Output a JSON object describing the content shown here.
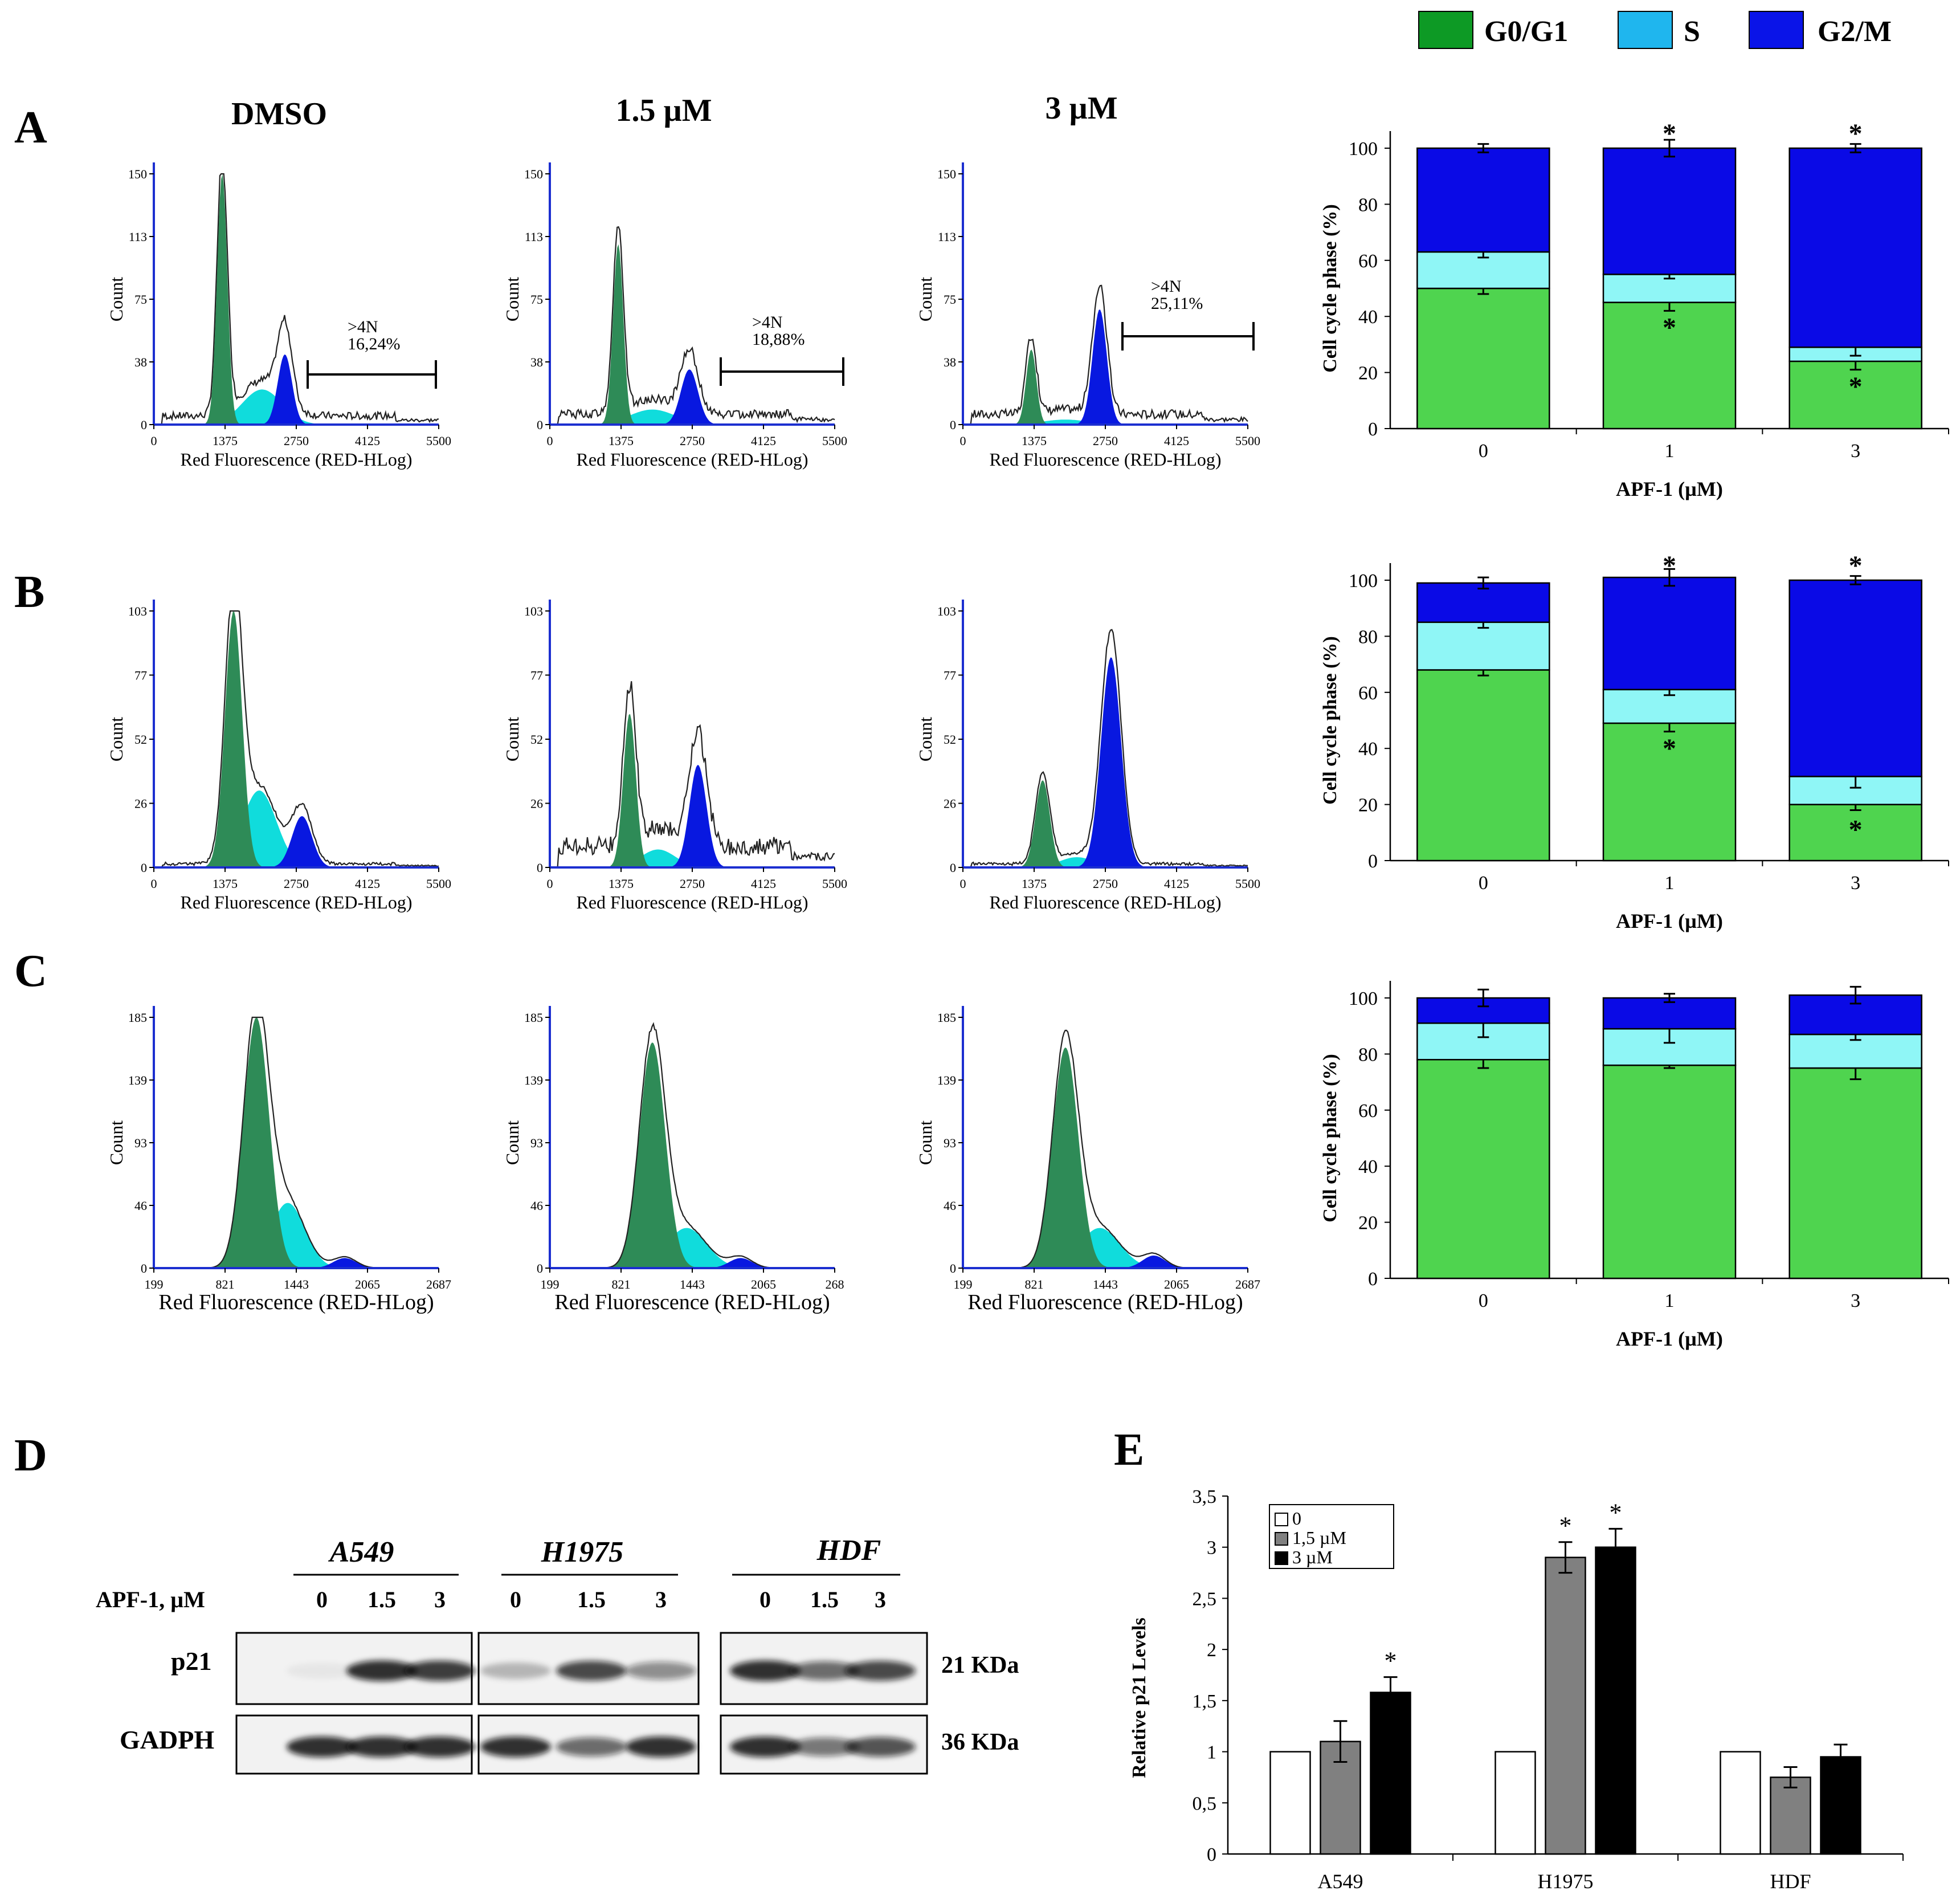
{
  "legend": {
    "items": [
      {
        "label": "G0/G1",
        "color": "#0d9a25"
      },
      {
        "label": "S",
        "color": "#1fb6ee"
      },
      {
        "label": "G2/M",
        "color": "#0a14e8"
      }
    ]
  },
  "panel_labels": {
    "A": "A",
    "B": "B",
    "C": "C",
    "D": "D",
    "E": "E"
  },
  "column_titles": [
    "DMSO",
    "1.5 µM",
    "3 µM"
  ],
  "histogram_axes": {
    "xlabel": "Red Fluorescence (RED-HLog)",
    "ylabel": "Count",
    "x_ticks_ab": [
      "0",
      "1375",
      "2750",
      "4125",
      "5500"
    ],
    "x_ticks_c": [
      "199",
      "821",
      "1443",
      "2065",
      "2687"
    ],
    "x_ticks_c_clipped": [
      "199",
      "821",
      "1443",
      "2065",
      "268"
    ],
    "y_ticks_a": [
      "0",
      "38",
      "75",
      "113",
      "150"
    ],
    "y_ticks_b": [
      "0",
      "26",
      "52",
      "77",
      "103"
    ],
    "y_ticks_c": [
      "0",
      "46",
      "93",
      "139",
      "185"
    ]
  },
  "annotations": {
    "a1": {
      "line1": ">4N",
      "line2": "16,24%"
    },
    "a2": {
      "line1": ">4N",
      "line2": "18,88%"
    },
    "a3": {
      "line1": ">4N",
      "line2": "25,11%"
    }
  },
  "colors": {
    "hist_g1": "#2e8b57",
    "hist_s": "#10dcdc",
    "hist_g2": "#0818e0",
    "bar_g1": "#4fd44f",
    "bar_s": "#8ff6f6",
    "bar_g2": "#0a0ae6",
    "e_0": "#ffffff",
    "e_15": "#808080",
    "e_3": "#000000"
  },
  "chart_data": [
    {
      "panel": "A",
      "type": "bar",
      "stacked": true,
      "title": "",
      "xlabel": "APF-1 (µM)",
      "ylabel": "Cell cycle phase (%)",
      "categories": [
        "0",
        "1",
        "3"
      ],
      "ylim": [
        0,
        100
      ],
      "yticks": [
        "0",
        "20",
        "40",
        "60",
        "80",
        "100"
      ],
      "series": [
        {
          "name": "G0/G1",
          "values": [
            50,
            45,
            24
          ],
          "errors": [
            2,
            3,
            3
          ]
        },
        {
          "name": "S",
          "values": [
            13,
            10,
            5
          ],
          "errors": [
            2,
            1.5,
            3
          ]
        },
        {
          "name": "G2/M",
          "values": [
            37,
            45,
            71
          ],
          "errors": [
            1.5,
            3,
            1.5
          ]
        }
      ],
      "significance": [
        "",
        "*",
        "*"
      ]
    },
    {
      "panel": "B",
      "type": "bar",
      "stacked": true,
      "xlabel": "APF-1 (µM)",
      "ylabel": "Cell cycle phase (%)",
      "categories": [
        "0",
        "1",
        "3"
      ],
      "ylim": [
        0,
        100
      ],
      "yticks": [
        "0",
        "20",
        "40",
        "60",
        "80",
        "100"
      ],
      "series": [
        {
          "name": "G0/G1",
          "values": [
            68,
            49,
            20
          ],
          "errors": [
            2,
            3,
            2
          ]
        },
        {
          "name": "S",
          "values": [
            17,
            12,
            10
          ],
          "errors": [
            2,
            2,
            4
          ]
        },
        {
          "name": "G2/M",
          "values": [
            14,
            40,
            70
          ],
          "errors": [
            2,
            3,
            1.5
          ]
        }
      ],
      "significance": [
        "",
        "*",
        "*"
      ]
    },
    {
      "panel": "C",
      "type": "bar",
      "stacked": true,
      "xlabel": "APF-1 (µM)",
      "ylabel": "Cell cycle phase (%)",
      "categories": [
        "0",
        "1",
        "3"
      ],
      "ylim": [
        0,
        100
      ],
      "yticks": [
        "0",
        "20",
        "40",
        "60",
        "80",
        "100"
      ],
      "series": [
        {
          "name": "G0/G1",
          "values": [
            78,
            76,
            75
          ],
          "errors": [
            3,
            1,
            4
          ]
        },
        {
          "name": "S",
          "values": [
            13,
            13,
            12
          ],
          "errors": [
            5,
            5,
            2
          ]
        },
        {
          "name": "G2/M",
          "values": [
            9,
            11,
            14
          ],
          "errors": [
            3,
            1.5,
            3
          ]
        }
      ],
      "significance": [
        "",
        "",
        ""
      ]
    },
    {
      "panel": "E",
      "type": "bar",
      "xlabel": "",
      "ylabel": "Relative p21 Levels",
      "categories": [
        "A549",
        "H1975",
        "HDF"
      ],
      "ylim": [
        0,
        3.5
      ],
      "yticks": [
        "0",
        "0,5",
        "1",
        "1,5",
        "2",
        "2,5",
        "3",
        "3,5"
      ],
      "series": [
        {
          "name": "0",
          "values": [
            1.0,
            1.0,
            1.0
          ],
          "errors": [
            0,
            0,
            0
          ]
        },
        {
          "name": "1,5 µM",
          "values": [
            1.1,
            2.9,
            0.75
          ],
          "errors": [
            0.2,
            0.15,
            0.1
          ]
        },
        {
          "name": "3 µM",
          "values": [
            1.58,
            3.0,
            0.95
          ],
          "errors": [
            0.15,
            0.18,
            0.12
          ]
        }
      ],
      "significance": {
        "1,5 µM": [
          "",
          "*",
          ""
        ],
        "3 µM": [
          "*",
          "*",
          ""
        ]
      }
    }
  ],
  "blot": {
    "cell_lines": [
      "A549",
      "H1975",
      "HDF"
    ],
    "treatment_label": "APF-1, µM",
    "doses": [
      "0",
      "1.5",
      "3"
    ],
    "proteins": [
      {
        "name": "p21",
        "size": "21 KDa"
      },
      {
        "name": "GADPH",
        "size": "36 KDa"
      }
    ]
  }
}
